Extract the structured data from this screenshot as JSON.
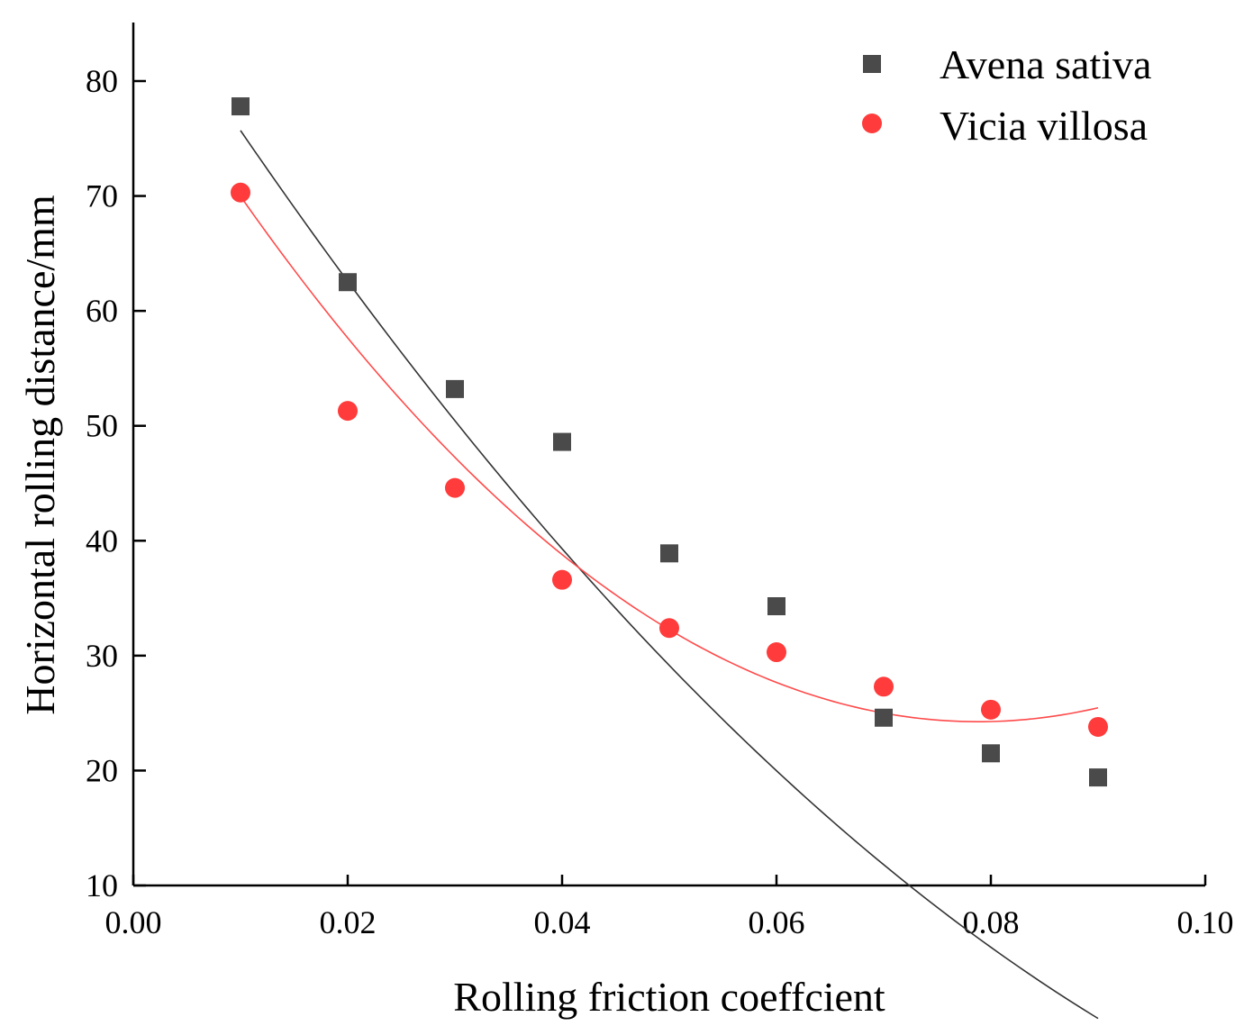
{
  "chart_data": {
    "type": "scatter",
    "title": "",
    "xlabel": "Rolling friction coeffcient",
    "ylabel": "Horizontal rolling distance/mm",
    "xlim": [
      0.0,
      0.1
    ],
    "ylim": [
      10,
      85
    ],
    "x_ticks": [
      0.0,
      0.02,
      0.04,
      0.06,
      0.08,
      0.1
    ],
    "x_tick_labels": [
      "0.00",
      "0.02",
      "0.04",
      "0.06",
      "0.08",
      "0.10"
    ],
    "y_ticks": [
      10,
      20,
      30,
      40,
      50,
      60,
      70,
      80
    ],
    "y_tick_labels": [
      "10",
      "20",
      "30",
      "40",
      "50",
      "60",
      "70",
      "80"
    ],
    "grid": false,
    "legend_position": "top-right",
    "series": [
      {
        "name": "Avena sativa",
        "marker": "square",
        "color": "#4a4a4a",
        "fit_color": "#333333",
        "x": [
          0.01,
          0.02,
          0.03,
          0.04,
          0.05,
          0.06,
          0.07,
          0.08,
          0.09
        ],
        "y": [
          77.8,
          62.5,
          53.2,
          48.6,
          38.9,
          34.3,
          24.6,
          21.5,
          19.4
        ],
        "fit_quadratic": [
          89.81,
          -1460.55,
          4946.6
        ]
      },
      {
        "name": "Vicia villosa",
        "marker": "circle",
        "color": "#ff3b3b",
        "fit_color": "#ff4a4a",
        "x": [
          0.01,
          0.02,
          0.03,
          0.04,
          0.05,
          0.06,
          0.07,
          0.08,
          0.09
        ],
        "y": [
          70.3,
          51.3,
          44.6,
          36.6,
          32.4,
          30.3,
          27.3,
          25.3,
          23.8
        ],
        "fit_quadratic": [
          84.23,
          -1522.1,
          9656.9
        ]
      }
    ]
  }
}
